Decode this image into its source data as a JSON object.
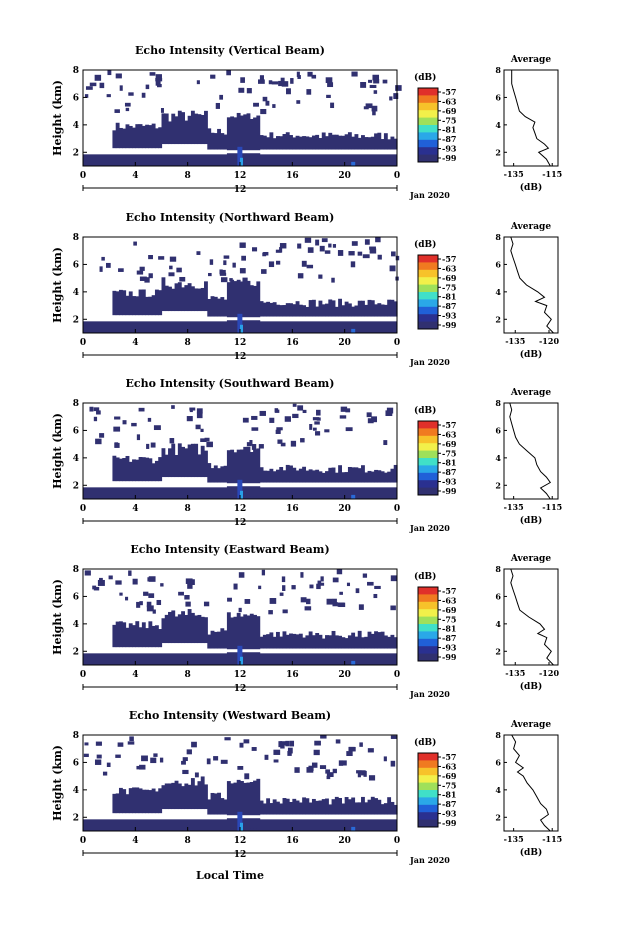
{
  "figure": {
    "xlabel": "Local Time",
    "date_label": "Jan 2020",
    "avg_title": "Average",
    "avg_xlabel": "(dB)",
    "colorbar_unit": "(dB)",
    "colorbar_ticks": [
      "-57",
      "-63",
      "-69",
      "-75",
      "-81",
      "-87",
      "-93",
      "-99"
    ],
    "colorbar_colors": [
      "#e0302a",
      "#f07a20",
      "#f7c22a",
      "#f2f04a",
      "#9fe05a",
      "#40e0c8",
      "#2aa8e8",
      "#2060d8",
      "#2a3090",
      "#303070"
    ]
  },
  "chart_data": [
    {
      "type": "heatmap",
      "title": "Echo Intensity (Vertical Beam)",
      "ylabel": "Height (km)",
      "xlim": [
        0,
        24
      ],
      "ylim": [
        1,
        8
      ],
      "x_ticks": [
        "0",
        "4",
        "8",
        "12",
        "16",
        "20",
        "0"
      ],
      "y_ticks": [
        "2",
        "4",
        "6",
        "8"
      ],
      "day_label": "12",
      "average": {
        "title": "Average",
        "xlabel": "(dB)",
        "x_ticks": [
          "-135",
          "-115"
        ],
        "xlim": [
          -140,
          -112
        ],
        "heights": [
          1.0,
          1.5,
          2.0,
          2.3,
          2.6,
          3.0,
          3.4,
          3.8,
          4.2,
          4.6,
          5.0,
          5.5,
          6.0,
          6.5,
          7.0,
          7.5,
          8.0
        ],
        "values": [
          -116,
          -118,
          -122,
          -117,
          -119,
          -123,
          -124,
          -125,
          -124,
          -129,
          -132,
          -133,
          -134,
          -135,
          -136,
          -136,
          -136
        ]
      }
    },
    {
      "type": "heatmap",
      "title": "Echo Intensity (Northward Beam)",
      "ylabel": "Height (km)",
      "xlim": [
        0,
        24
      ],
      "ylim": [
        1,
        8
      ],
      "x_ticks": [
        "0",
        "4",
        "8",
        "12",
        "16",
        "20",
        "0"
      ],
      "y_ticks": [
        "2",
        "4",
        "6",
        "8"
      ],
      "day_label": "12",
      "average": {
        "title": "Average",
        "xlabel": "(dB)",
        "x_ticks": [
          "-135",
          "-120"
        ],
        "xlim": [
          -140,
          -116
        ],
        "heights": [
          1.0,
          1.5,
          2.0,
          2.5,
          3.0,
          3.3,
          3.6,
          4.0,
          4.5,
          5.0,
          5.5,
          6.0,
          6.5,
          7.0,
          7.5,
          8.0
        ],
        "values": [
          -118,
          -121,
          -119,
          -122,
          -121,
          -126,
          -122,
          -125,
          -130,
          -133,
          -134,
          -135,
          -136,
          -137,
          -136,
          -137
        ]
      }
    },
    {
      "type": "heatmap",
      "title": "Echo Intensity (Southward Beam)",
      "ylabel": "Height (km)",
      "xlim": [
        0,
        24
      ],
      "ylim": [
        1,
        8
      ],
      "x_ticks": [
        "0",
        "4",
        "8",
        "12",
        "16",
        "20",
        "0"
      ],
      "y_ticks": [
        "2",
        "4",
        "6",
        "8"
      ],
      "day_label": "12",
      "average": {
        "title": "Average",
        "xlabel": "(dB)",
        "x_ticks": [
          "-135",
          "-115"
        ],
        "xlim": [
          -140,
          -112
        ],
        "heights": [
          1.0,
          1.4,
          1.8,
          2.2,
          2.6,
          3.0,
          3.5,
          4.0,
          4.5,
          5.0,
          5.5,
          6.0,
          6.5,
          7.0,
          7.5,
          8.0
        ],
        "values": [
          -116,
          -118,
          -121,
          -116,
          -118,
          -121,
          -123,
          -124,
          -128,
          -132,
          -134,
          -135,
          -136,
          -137,
          -136,
          -137
        ]
      }
    },
    {
      "type": "heatmap",
      "title": "Echo Intensity (Eastward Beam)",
      "ylabel": "Height (km)",
      "xlim": [
        0,
        24
      ],
      "ylim": [
        1,
        8
      ],
      "x_ticks": [
        "0",
        "4",
        "8",
        "12",
        "16",
        "20",
        "0"
      ],
      "y_ticks": [
        "2",
        "4",
        "6",
        "8"
      ],
      "day_label": "12",
      "average": {
        "title": "Average",
        "xlabel": "(dB)",
        "x_ticks": [
          "-135",
          "-120"
        ],
        "xlim": [
          -140,
          -116
        ],
        "heights": [
          1.0,
          1.5,
          2.0,
          2.5,
          3.0,
          3.3,
          3.6,
          4.0,
          4.5,
          5.0,
          5.5,
          6.0,
          6.5,
          7.0,
          7.5,
          8.0
        ],
        "values": [
          -118,
          -121,
          -119,
          -122,
          -121,
          -125,
          -122,
          -124,
          -129,
          -133,
          -134,
          -135,
          -136,
          -137,
          -136,
          -137
        ]
      }
    },
    {
      "type": "heatmap",
      "title": "Echo Intensity (Westward Beam)",
      "ylabel": "Height (km)",
      "xlim": [
        0,
        24
      ],
      "ylim": [
        1,
        8
      ],
      "x_ticks": [
        "0",
        "4",
        "8",
        "12",
        "16",
        "20",
        "0"
      ],
      "y_ticks": [
        "2",
        "4",
        "6",
        "8"
      ],
      "day_label": "12",
      "average": {
        "title": "Average",
        "xlabel": "(dB)",
        "x_ticks": [
          "-135",
          "-115"
        ],
        "xlim": [
          -140,
          -112
        ],
        "heights": [
          1.0,
          1.4,
          1.8,
          2.2,
          2.6,
          3.0,
          3.5,
          4.0,
          4.5,
          5.0,
          5.3,
          5.6,
          6.0,
          6.5,
          7.0,
          7.5,
          8.0
        ],
        "values": [
          -116,
          -119,
          -121,
          -117,
          -118,
          -121,
          -123,
          -125,
          -128,
          -130,
          -133,
          -130,
          -134,
          -132,
          -135,
          -134,
          -136
        ]
      }
    }
  ]
}
